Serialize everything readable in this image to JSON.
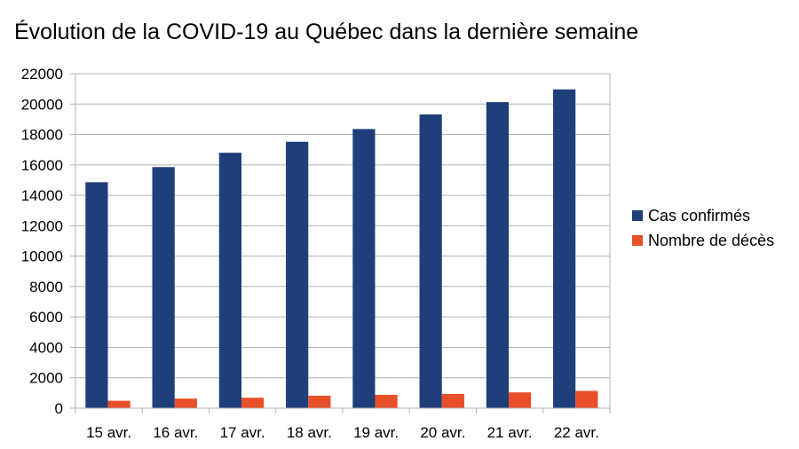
{
  "chart_data": {
    "type": "bar",
    "title": "Évolution de la COVID-19 au Québec dans la dernière semaine",
    "xlabel": "",
    "ylabel": "",
    "categories": [
      "15 avr.",
      "16 avr.",
      "17 avr.",
      "18 avr.",
      "19 avr.",
      "20 avr.",
      "21 avr.",
      "22 avr."
    ],
    "series": [
      {
        "name": "Cas confirmés",
        "color": "#1f3f7a",
        "values": [
          14860,
          15857,
          16798,
          17521,
          18357,
          19319,
          20126,
          20965
        ]
      },
      {
        "name": "Nombre de décès",
        "color": "#e8502a",
        "values": [
          487,
          630,
          688,
          820,
          877,
          939,
          1041,
          1134
        ]
      }
    ],
    "ylim": [
      0,
      22000
    ],
    "yticks": [
      0,
      2000,
      4000,
      6000,
      8000,
      10000,
      12000,
      14000,
      16000,
      18000,
      20000,
      22000
    ],
    "grid": true,
    "legend_position": "right"
  }
}
